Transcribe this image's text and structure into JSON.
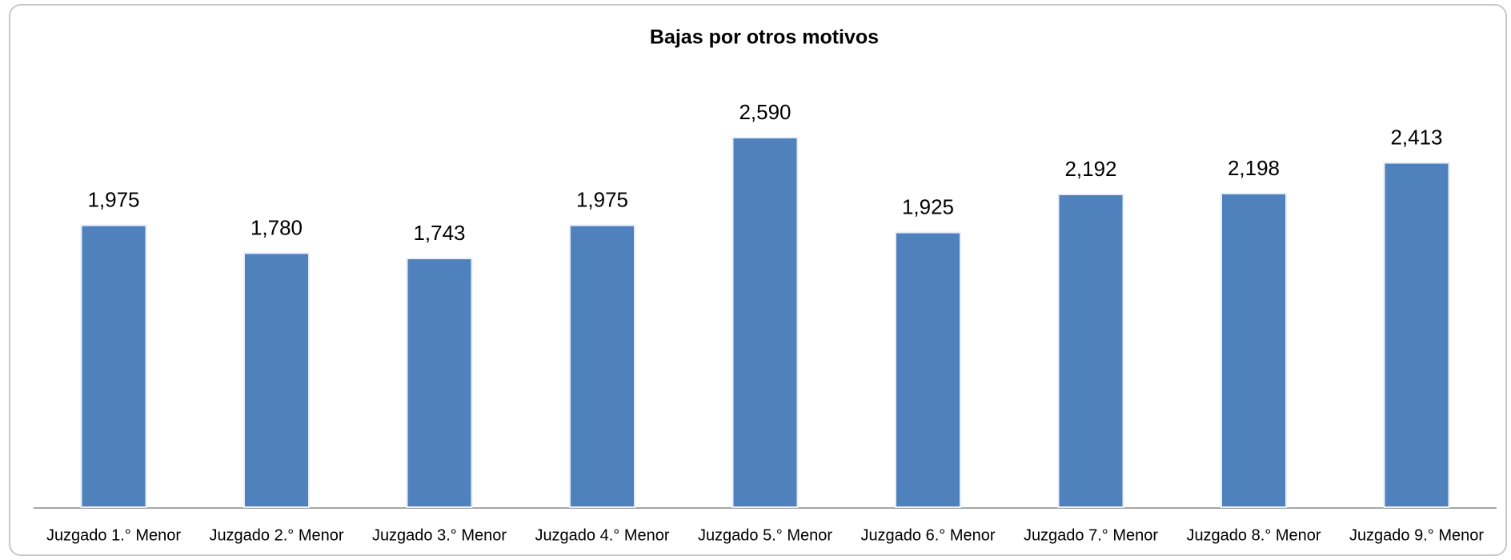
{
  "chart_data": {
    "type": "bar",
    "title": "Bajas por otros motivos",
    "categories": [
      "Juzgado 1.° Menor",
      "Juzgado 2.° Menor",
      "Juzgado 3.° Menor",
      "Juzgado 4.° Menor",
      "Juzgado 5.° Menor",
      "Juzgado 6.° Menor",
      "Juzgado 7.° Menor",
      "Juzgado 8.° Menor",
      "Juzgado 9.° Menor"
    ],
    "values": [
      1975,
      1780,
      1743,
      1975,
      2590,
      1925,
      2192,
      2198,
      2413
    ],
    "value_labels": [
      "1,975",
      "1,780",
      "1,743",
      "1,975",
      "2,590",
      "1,925",
      "2,192",
      "2,198",
      "2,413"
    ],
    "color": "#4f81bd"
  }
}
